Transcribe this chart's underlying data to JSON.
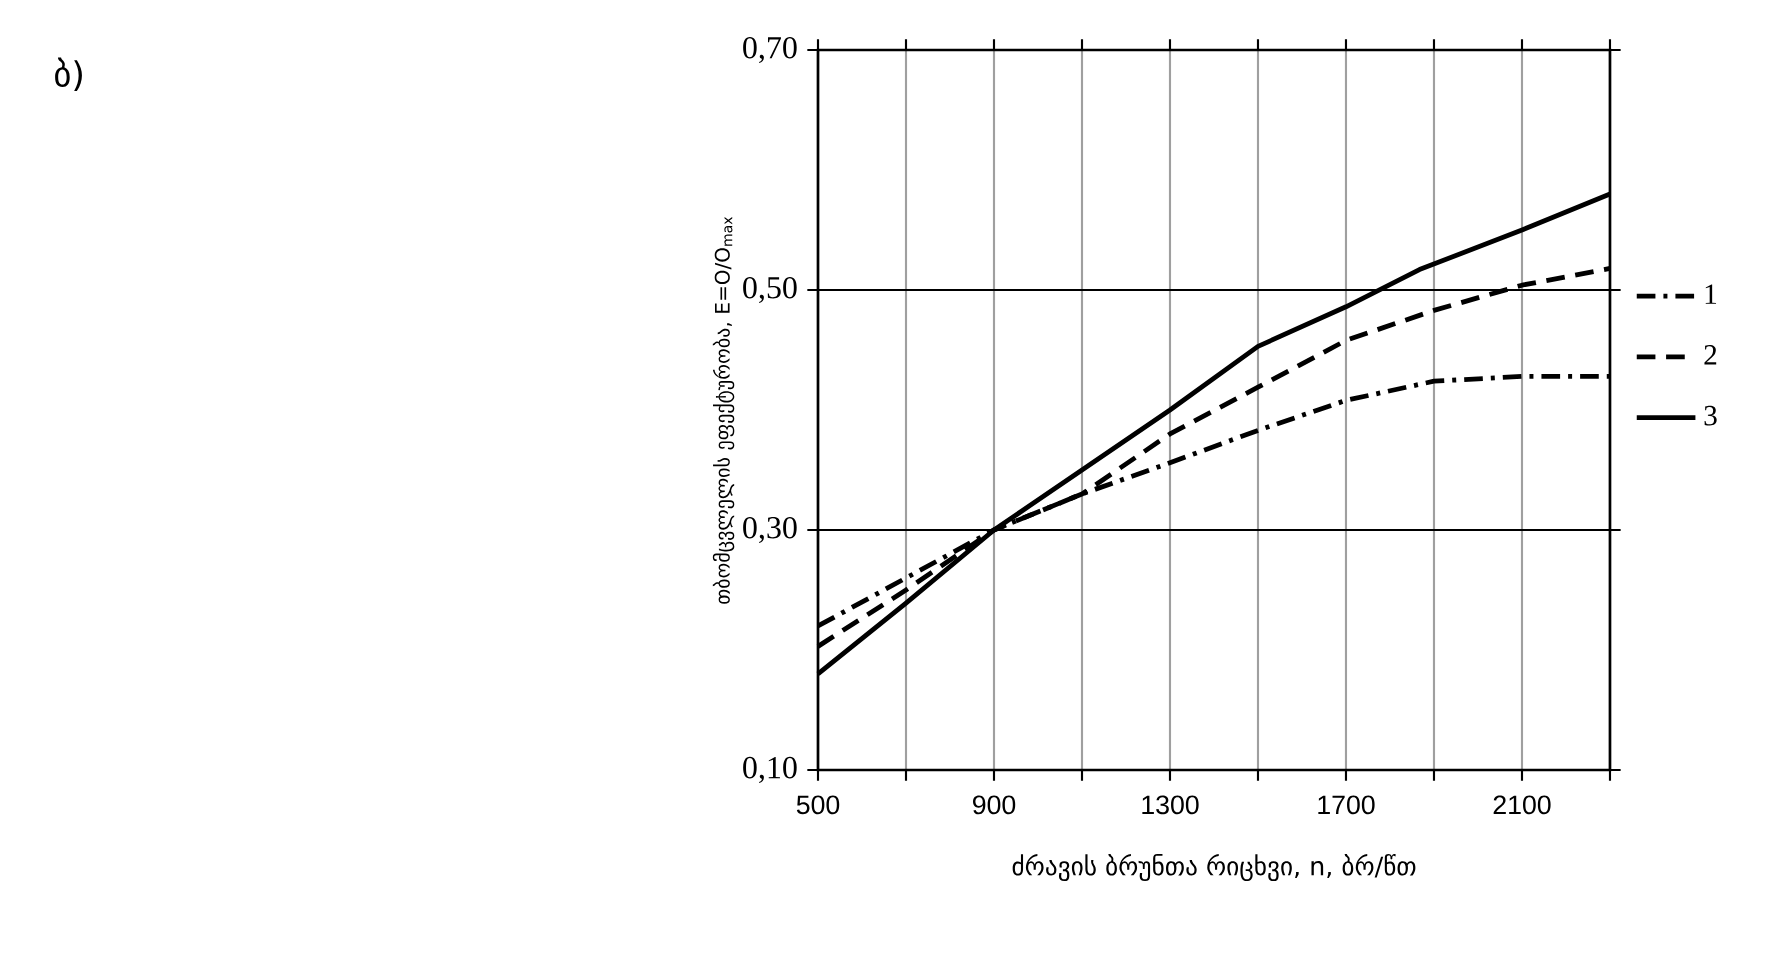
{
  "chart_data": {
    "type": "line",
    "title": "ბ)",
    "xlabel": "ძრავის ბრუნთა რიცხვი, n, ბრ/წთ",
    "ylabel": "თბომცვლელის ეფექტურობა, E=O/O$_{max}$",
    "xlim": [
      500,
      2300
    ],
    "xticks": [
      500,
      {
        "value": 700,
        "label": null
      },
      900,
      {
        "value": 1100,
        "label": null
      },
      1300,
      {
        "value": 1500,
        "label": null
      },
      1700,
      {
        "value": 1900,
        "label": null
      },
      2100,
      {
        "value": 2300,
        "label": null
      }
    ],
    "ylim": [
      0.1,
      0.7
    ],
    "yticks": [
      {
        "value": 0.1,
        "label": "0,10"
      },
      {
        "value": 0.3,
        "label": "0,30"
      },
      {
        "value": 0.5,
        "label": "0,50"
      },
      {
        "value": 0.7,
        "label": "0,70"
      }
    ],
    "grid": true,
    "legend": "right",
    "marker": "none",
    "series": [
      {
        "name": "1",
        "color": "#000000",
        "line_style": "dashdot",
        "x": [
          500,
          700,
          900,
          1100,
          1300,
          1500,
          1700,
          1900,
          2100,
          2300
        ],
        "values": [
          0.22,
          0.26,
          0.3,
          0.33,
          0.356,
          0.383,
          0.408,
          0.424,
          0.428,
          0.428
        ]
      },
      {
        "name": "2",
        "color": "#000000",
        "line_style": "dashed",
        "x": [
          500,
          700,
          900,
          1100,
          1300,
          1500,
          1700,
          1900,
          2100,
          2300
        ],
        "values": [
          0.203,
          0.25,
          0.3,
          0.33,
          0.38,
          0.419,
          0.458,
          0.483,
          0.504,
          0.518
        ]
      },
      {
        "name": "3",
        "color": "#000000",
        "line_style": "solid",
        "x": [
          500,
          700,
          900,
          1100,
          1300,
          1500,
          1700,
          1867,
          2100,
          2300
        ],
        "values": [
          0.18,
          0.239,
          0.3,
          0.35,
          0.4,
          0.453,
          0.486,
          0.517,
          0.55,
          0.58
        ]
      }
    ]
  }
}
